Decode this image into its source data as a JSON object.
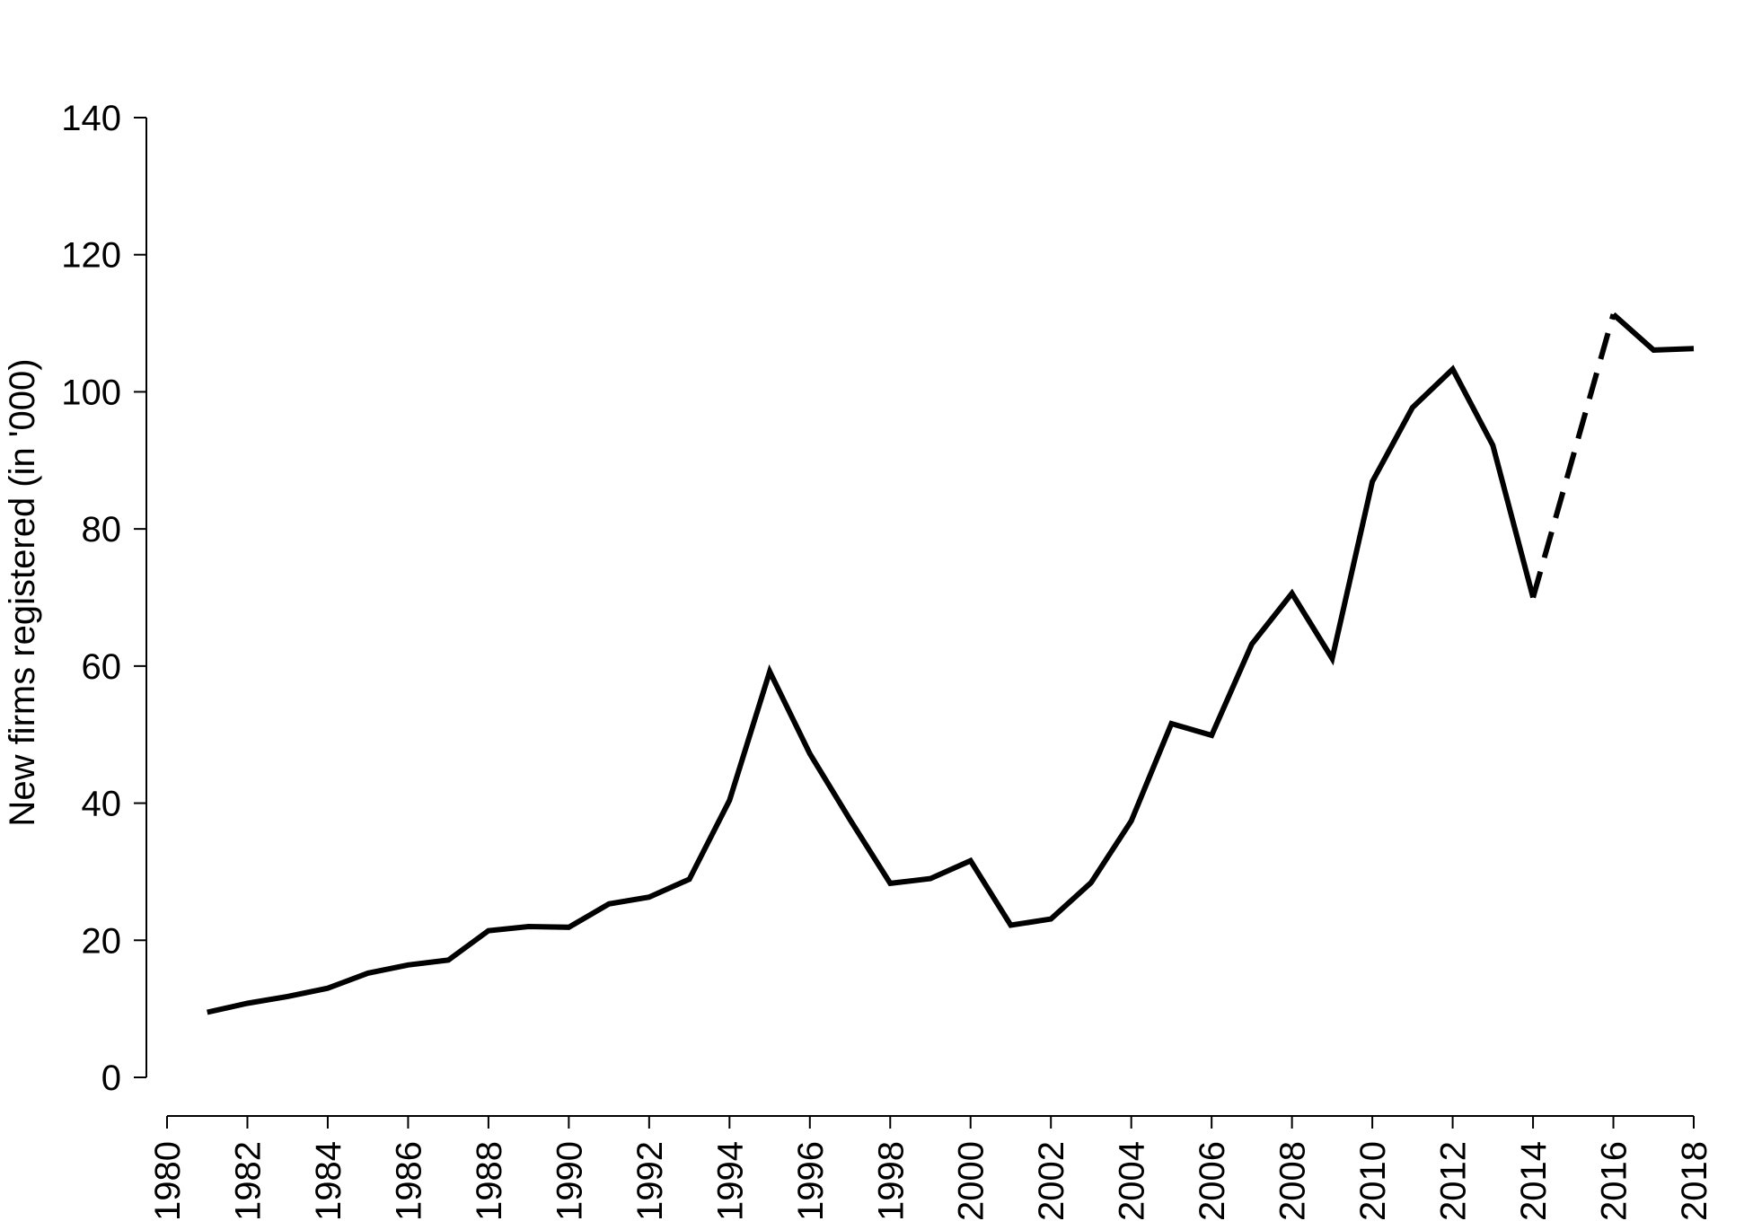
{
  "chart_data": {
    "type": "line",
    "title": "",
    "xlabel": "",
    "ylabel": "New firms registered (in '000)",
    "xlim": [
      1980,
      2018
    ],
    "ylim": [
      0,
      140
    ],
    "x_ticks": [
      1980,
      1982,
      1984,
      1986,
      1988,
      1990,
      1992,
      1994,
      1996,
      1998,
      2000,
      2002,
      2004,
      2006,
      2008,
      2010,
      2012,
      2014,
      2016,
      2018
    ],
    "y_ticks": [
      0,
      20,
      40,
      60,
      80,
      100,
      120,
      140
    ],
    "grid": false,
    "legend": "none",
    "series": [
      {
        "style": "solid",
        "color": "#000000",
        "x": [
          1981,
          1982,
          1983,
          1984,
          1985,
          1986,
          1987,
          1988,
          1989,
          1990,
          1991,
          1992,
          1993,
          1994,
          1995,
          1996,
          1997,
          1998,
          1999,
          2000,
          2001,
          2002,
          2003,
          2004,
          2005,
          2006,
          2007,
          2008,
          2009,
          2010,
          2011,
          2012,
          2013,
          2014
        ],
        "y": [
          9.5,
          10.8,
          11.8,
          13.0,
          15.2,
          16.4,
          17.1,
          21.4,
          22.0,
          21.9,
          25.3,
          26.3,
          28.9,
          40.4,
          59.2,
          47.2,
          37.6,
          28.3,
          29.0,
          31.6,
          22.2,
          23.1,
          28.4,
          37.4,
          51.6,
          49.9,
          63.2,
          70.6,
          61.1,
          86.9,
          97.7,
          103.3,
          92.2,
          70.0
        ]
      },
      {
        "style": "dashed",
        "color": "#000000",
        "x": [
          2014,
          2016
        ],
        "y": [
          70.0,
          111.3
        ]
      },
      {
        "style": "solid",
        "color": "#000000",
        "x": [
          2016,
          2017,
          2018
        ],
        "y": [
          111.3,
          106.1,
          106.3
        ]
      }
    ]
  }
}
